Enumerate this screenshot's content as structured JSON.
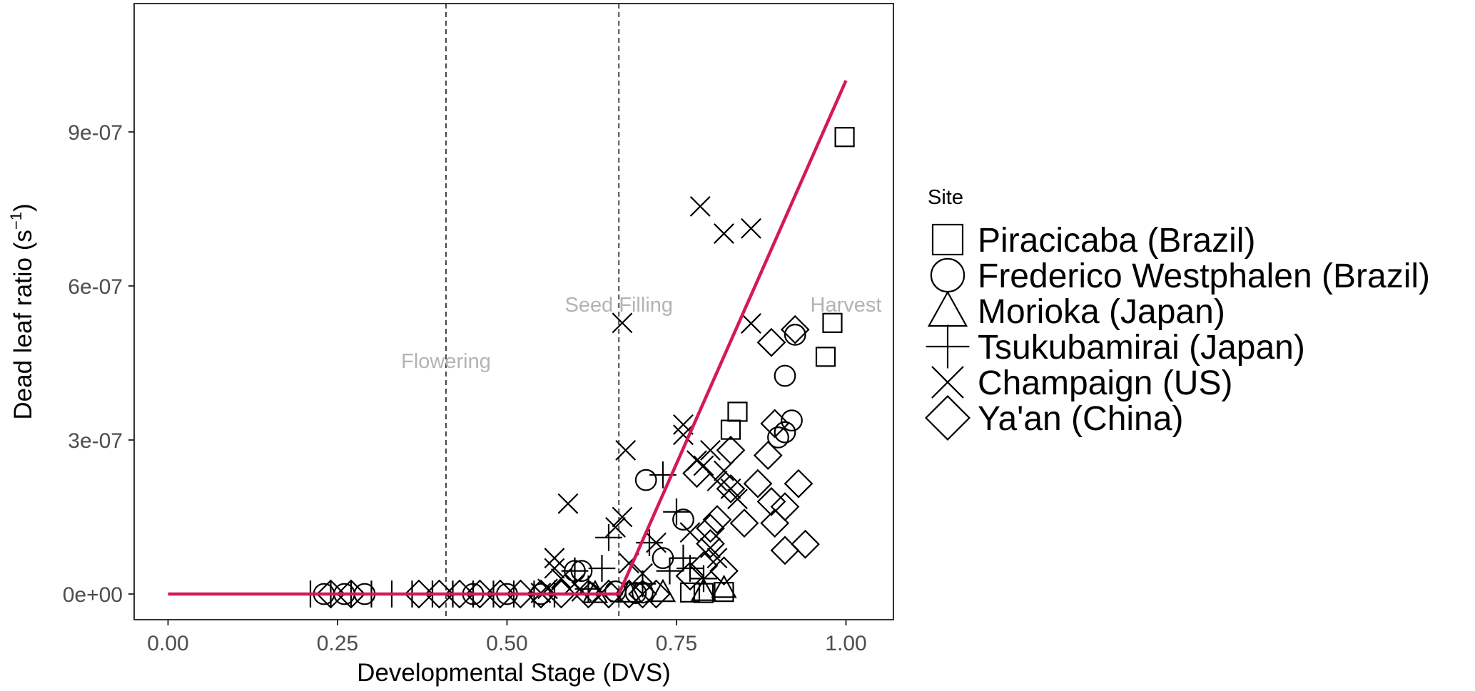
{
  "chart_data": {
    "type": "scatter",
    "xlabel": "Developmental Stage (DVS)",
    "ylabel_main": "Dead leaf ratio (s",
    "ylabel_sup": "−1",
    "ylabel_close": ")",
    "xlim": [
      -0.05,
      1.07
    ],
    "ylim": [
      -5e-08,
      1.15e-06
    ],
    "x_ticks": [
      {
        "value": 0.0,
        "label": "0.00"
      },
      {
        "value": 0.25,
        "label": "0.25"
      },
      {
        "value": 0.5,
        "label": "0.50"
      },
      {
        "value": 0.75,
        "label": "0.75"
      },
      {
        "value": 1.0,
        "label": "1.00"
      }
    ],
    "y_ticks": [
      {
        "value": 0,
        "label": "0e+00"
      },
      {
        "value": 3e-07,
        "label": "3e-07"
      },
      {
        "value": 6e-07,
        "label": "6e-07"
      },
      {
        "value": 9e-07,
        "label": "9e-07"
      }
    ],
    "grid": false,
    "vlines": [
      0.41,
      0.665
    ],
    "annotations": [
      {
        "text": "Flowering",
        "x": 0.41,
        "y": 4.4e-07
      },
      {
        "text": "Seed Filling",
        "x": 0.665,
        "y": 5.5e-07
      },
      {
        "text": "Harvest",
        "x": 1.0,
        "y": 5.5e-07
      }
    ],
    "fit_line": {
      "color": "#d5185b",
      "points": [
        [
          0.0,
          0
        ],
        [
          0.665,
          0
        ],
        [
          1.0,
          1e-06
        ]
      ]
    },
    "legend": {
      "title": "Site",
      "position": "right"
    },
    "series": [
      {
        "name": "Piracicaba (Brazil)",
        "shape": "square",
        "points": [
          [
            0.998,
            8.9e-07
          ],
          [
            0.98,
            5.28e-07
          ],
          [
            0.97,
            4.62e-07
          ],
          [
            0.84,
            3.55e-07
          ],
          [
            0.83,
            3.2e-07
          ],
          [
            0.77,
            3e-09
          ],
          [
            0.79,
            2e-09
          ],
          [
            0.82,
            4e-09
          ]
        ]
      },
      {
        "name": "Frederico Westphalen (Brazil)",
        "shape": "circle",
        "points": [
          [
            0.23,
            0
          ],
          [
            0.26,
            0
          ],
          [
            0.29,
            0
          ],
          [
            0.6,
            4.5e-08
          ],
          [
            0.61,
            4.5e-08
          ],
          [
            0.705,
            2.22e-07
          ],
          [
            0.76,
            1.45e-07
          ],
          [
            0.73,
            7e-08
          ],
          [
            0.9,
            3.05e-07
          ],
          [
            0.91,
            3.15e-07
          ],
          [
            0.92,
            3.38e-07
          ],
          [
            0.91,
            4.25e-07
          ],
          [
            0.925,
            5.05e-07
          ],
          [
            0.66,
            5e-09
          ],
          [
            0.69,
            2e-09
          ],
          [
            0.7,
            3e-09
          ],
          [
            0.45,
            0
          ],
          [
            0.5,
            0
          ],
          [
            0.55,
            0
          ]
        ]
      },
      {
        "name": "Morioka (Japan)",
        "shape": "triangle",
        "points": [
          [
            0.79,
            6e-09
          ],
          [
            0.82,
            1.2e-08
          ],
          [
            0.73,
            4e-09
          ],
          [
            0.63,
            2e-09
          ],
          [
            0.68,
            3e-09
          ]
        ]
      },
      {
        "name": "Tsukubamirai (Japan)",
        "shape": "plus",
        "points": [
          [
            0.21,
            0
          ],
          [
            0.24,
            0
          ],
          [
            0.27,
            0
          ],
          [
            0.3,
            0
          ],
          [
            0.33,
            0
          ],
          [
            0.36,
            0
          ],
          [
            0.39,
            0
          ],
          [
            0.42,
            0
          ],
          [
            0.45,
            0
          ],
          [
            0.48,
            0
          ],
          [
            0.51,
            0
          ],
          [
            0.54,
            0
          ],
          [
            0.57,
            0
          ],
          [
            0.6,
            4.5e-08
          ],
          [
            0.65,
            1.1e-07
          ],
          [
            0.64,
            5e-08
          ],
          [
            0.71,
            1e-07
          ],
          [
            0.73,
            2.32e-07
          ],
          [
            0.74,
            4.5e-08
          ],
          [
            0.76,
            7e-08
          ],
          [
            0.77,
            5e-08
          ],
          [
            0.79,
            3e-08
          ],
          [
            0.62,
            1e-08
          ],
          [
            0.7,
            2e-08
          ],
          [
            0.75,
            1.6e-07
          ]
        ]
      },
      {
        "name": "Champaign (US)",
        "shape": "x",
        "points": [
          [
            0.59,
            1.76e-07
          ],
          [
            0.57,
            7e-08
          ],
          [
            0.57,
            5e-08
          ],
          [
            0.58,
            3e-08
          ],
          [
            0.6,
            2e-08
          ],
          [
            0.67,
            5.28e-07
          ],
          [
            0.675,
            2.8e-07
          ],
          [
            0.67,
            1.5e-07
          ],
          [
            0.66,
            1.3e-07
          ],
          [
            0.68,
            6e-08
          ],
          [
            0.7,
            4e-08
          ],
          [
            0.72,
            1e-07
          ],
          [
            0.76,
            3.3e-07
          ],
          [
            0.76,
            3.1e-07
          ],
          [
            0.78,
            2.6e-07
          ],
          [
            0.79,
            2.5e-07
          ],
          [
            0.8,
            2.8e-07
          ],
          [
            0.81,
            2.2e-07
          ],
          [
            0.82,
            2.4e-07
          ],
          [
            0.83,
            2.05e-07
          ],
          [
            0.84,
            1.85e-07
          ],
          [
            0.785,
            7.55e-07
          ],
          [
            0.82,
            7.02e-07
          ],
          [
            0.86,
            7.12e-07
          ],
          [
            0.86,
            5.27e-07
          ],
          [
            0.77,
            1.2e-07
          ],
          [
            0.8,
            9e-08
          ],
          [
            0.81,
            7e-08
          ],
          [
            0.56,
            1e-08
          ],
          [
            0.61,
            5e-09
          ],
          [
            0.55,
            2e-09
          ],
          [
            0.64,
            3e-09
          ]
        ]
      },
      {
        "name": "Ya'an (China)",
        "shape": "diamond",
        "points": [
          [
            0.925,
            5.15e-07
          ],
          [
            0.89,
            4.9e-07
          ],
          [
            0.895,
            3.32e-07
          ],
          [
            0.885,
            2.7e-07
          ],
          [
            0.87,
            2.15e-07
          ],
          [
            0.89,
            1.8e-07
          ],
          [
            0.91,
            1.7e-07
          ],
          [
            0.93,
            2.15e-07
          ],
          [
            0.895,
            1.38e-07
          ],
          [
            0.85,
            1.38e-07
          ],
          [
            0.83,
            2.8e-07
          ],
          [
            0.83,
            2.05e-07
          ],
          [
            0.81,
            1.45e-07
          ],
          [
            0.8,
            1.28e-07
          ],
          [
            0.78,
            2.35e-07
          ],
          [
            0.8,
            9.8e-08
          ],
          [
            0.91,
            8.5e-08
          ],
          [
            0.94,
            9.7e-08
          ],
          [
            0.82,
            4.5e-08
          ],
          [
            0.79,
            5.5e-08
          ],
          [
            0.77,
            3.5e-08
          ],
          [
            0.24,
            0
          ],
          [
            0.27,
            0
          ],
          [
            0.37,
            0
          ],
          [
            0.4,
            0
          ],
          [
            0.43,
            0
          ],
          [
            0.46,
            0
          ],
          [
            0.49,
            0
          ],
          [
            0.52,
            0
          ],
          [
            0.55,
            0
          ],
          [
            0.58,
            0
          ],
          [
            0.62,
            0
          ],
          [
            0.65,
            0
          ],
          [
            0.68,
            0
          ],
          [
            0.7,
            0
          ],
          [
            0.72,
            0
          ]
        ]
      }
    ]
  }
}
